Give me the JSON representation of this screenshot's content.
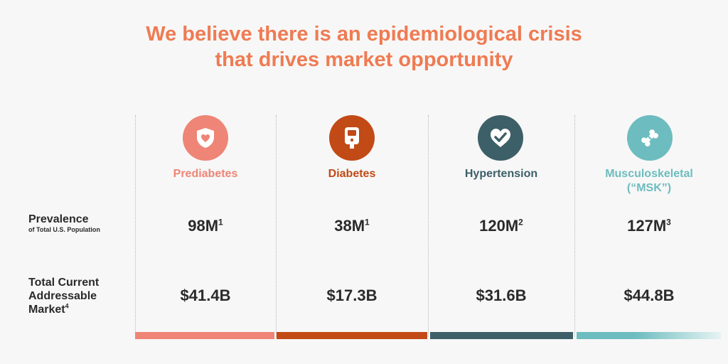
{
  "title": {
    "line1": "We believe there is an epidemiological crisis",
    "line2": "that drives market opportunity"
  },
  "rows": {
    "prevalence": {
      "label": "Prevalence",
      "sublabel": "of Total U.S. Population"
    },
    "tam": {
      "line1": "Total Current",
      "line2": "Addressable",
      "line3": "Market",
      "footnote": "4"
    }
  },
  "columns": [
    {
      "name": "Prediabetes",
      "name2": "",
      "prevalence": "98M",
      "prevalence_fn": "1",
      "tam": "$41.4B",
      "color": "#ee8576",
      "icon": "shield-heart-icon"
    },
    {
      "name": "Diabetes",
      "name2": "",
      "prevalence": "38M",
      "prevalence_fn": "1",
      "tam": "$17.3B",
      "color": "#c24a16",
      "icon": "glucose-meter-icon"
    },
    {
      "name": "Hypertension",
      "name2": "",
      "prevalence": "120M",
      "prevalence_fn": "2",
      "tam": "$31.6B",
      "color": "#3d5f68",
      "icon": "heart-check-icon"
    },
    {
      "name": "Musculoskeletal",
      "name2": "(“MSK”)",
      "prevalence": "127M",
      "prevalence_fn": "3",
      "tam": "$44.8B",
      "color": "#6dbcbf",
      "icon": "bone-icon"
    }
  ]
}
